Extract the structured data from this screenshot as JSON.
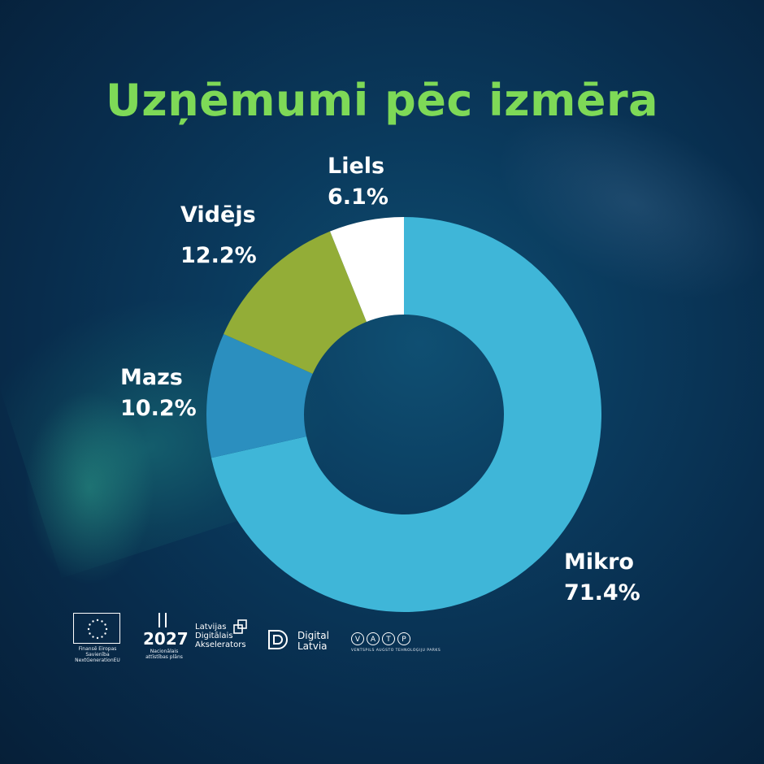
{
  "title": "Uzņēmumi pēc izmēra",
  "colors": {
    "title": "#7ed957",
    "label": "#ffffff"
  },
  "chart_data": {
    "type": "pie",
    "variant": "donut",
    "start": "12 o'clock, clockwise",
    "categories": [
      "Mikro",
      "Mazs",
      "Vidējs",
      "Liels"
    ],
    "values": [
      71.4,
      10.2,
      12.2,
      6.1
    ],
    "value_labels": [
      "71.4%",
      "10.2%",
      "12.2%",
      "6.1%"
    ],
    "colors": [
      "#3fb6d8",
      "#2b8fbf",
      "#93ad37",
      "#ffffff"
    ]
  },
  "logos": {
    "eu_caption": "Finansē Eiropas Savienība NextGenerationEU",
    "plan_year": "2027",
    "plan_caption": "Nacionālais attīstības plāns",
    "lda_lines": [
      "Latvijas",
      "Digitālais",
      "Akselerators"
    ],
    "digital_latvia_lines": [
      "Digital",
      "Latvia"
    ],
    "vatp_letters": [
      "V",
      "A",
      "T",
      "P"
    ],
    "vatp_caption": "VENTSPILS AUGSTO TEHNOLOĢIJU PARKS"
  }
}
